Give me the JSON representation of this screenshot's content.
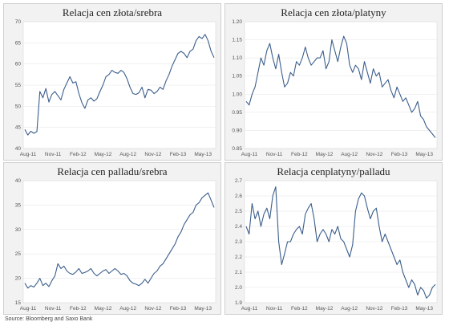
{
  "source": "Source: Bloomberg and Saxo Bank",
  "x_ticks": [
    "Aug-11",
    "Nov-11",
    "Feb-12",
    "May-12",
    "Aug-12",
    "Nov-12",
    "Feb-13",
    "May-13"
  ],
  "line_color": "#3b5e8c",
  "chart_data": [
    {
      "type": "line",
      "title": "Relacja cen złota/srebra",
      "ylim": [
        40,
        70
      ],
      "yticks": [
        40,
        45,
        50,
        55,
        60,
        65,
        70
      ],
      "x_start": "2011-08",
      "x_end": "2013-07",
      "series": [
        {
          "values": [
            44.5,
            43.2,
            44.1,
            43.6,
            44.0,
            53.5,
            52.0,
            54.2,
            51.0,
            52.8,
            53.5,
            52.5,
            51.5,
            54.0,
            55.5,
            57.0,
            55.5,
            55.8,
            53.0,
            50.8,
            49.5,
            51.5,
            52.0,
            51.2,
            51.8,
            53.5,
            55.0,
            57.0,
            57.5,
            58.5,
            58.0,
            57.8,
            58.5,
            58.0,
            56.5,
            54.5,
            53.0,
            52.8,
            53.2,
            54.5,
            52.0,
            54.0,
            53.8,
            53.0,
            53.5,
            54.5,
            54.0,
            56.0,
            57.5,
            59.5,
            61.0,
            62.5,
            63.0,
            62.5,
            61.5,
            63.0,
            63.5,
            65.5,
            66.5,
            66.0,
            67.0,
            65.5,
            63.0,
            61.5
          ]
        }
      ]
    },
    {
      "type": "line",
      "title": "Relacja cen złota/platyny",
      "ylim": [
        0.85,
        1.2
      ],
      "yticks": [
        "0.85",
        "0.90",
        "0.95",
        "1.00",
        "1.05",
        "1.10",
        "1.15",
        "1.20"
      ],
      "x_start": "2011-08",
      "x_end": "2013-07",
      "series": [
        {
          "values": [
            0.98,
            0.97,
            1.0,
            1.02,
            1.06,
            1.1,
            1.08,
            1.12,
            1.14,
            1.1,
            1.07,
            1.11,
            1.06,
            1.02,
            1.03,
            1.06,
            1.05,
            1.09,
            1.08,
            1.1,
            1.13,
            1.1,
            1.08,
            1.09,
            1.1,
            1.1,
            1.12,
            1.07,
            1.09,
            1.15,
            1.12,
            1.09,
            1.13,
            1.16,
            1.14,
            1.08,
            1.06,
            1.08,
            1.07,
            1.04,
            1.09,
            1.06,
            1.03,
            1.07,
            1.05,
            1.06,
            1.02,
            1.03,
            1.04,
            1.01,
            0.99,
            1.02,
            1.0,
            0.98,
            0.99,
            0.97,
            0.95,
            0.96,
            0.98,
            0.94,
            0.93,
            0.91,
            0.9,
            0.89,
            0.88
          ]
        }
      ]
    },
    {
      "type": "line",
      "title": "Relacja cen palladu/srebra",
      "ylim": [
        15,
        40
      ],
      "yticks": [
        15,
        20,
        25,
        30,
        35,
        40
      ],
      "x_start": "2011-08",
      "x_end": "2013-07",
      "series": [
        {
          "values": [
            19.0,
            18.0,
            18.5,
            18.2,
            19.0,
            20.0,
            18.5,
            19.0,
            18.3,
            19.5,
            20.5,
            23.0,
            22.0,
            22.5,
            21.5,
            21.0,
            20.8,
            21.3,
            22.0,
            21.0,
            21.2,
            21.5,
            22.0,
            21.0,
            20.5,
            21.0,
            21.5,
            21.8,
            21.0,
            21.5,
            22.0,
            21.5,
            20.8,
            21.0,
            20.5,
            19.5,
            19.0,
            18.8,
            18.5,
            19.0,
            19.8,
            19.0,
            20.0,
            21.0,
            21.5,
            22.5,
            23.0,
            24.0,
            25.0,
            26.0,
            27.0,
            28.5,
            29.5,
            31.0,
            32.0,
            33.0,
            33.5,
            35.0,
            35.5,
            36.5,
            37.0,
            37.5,
            36.0,
            34.5
          ]
        }
      ]
    },
    {
      "type": "line",
      "title": "Relacja cenplatyny/palladu",
      "ylim": [
        1.9,
        2.7
      ],
      "yticks": [
        "1.9",
        "2.0",
        "2.1",
        "2.2",
        "2.3",
        "2.4",
        "2.5",
        "2.6",
        "2.7"
      ],
      "x_start": "2011-08",
      "x_end": "2013-07",
      "series": [
        {
          "values": [
            2.4,
            2.35,
            2.55,
            2.45,
            2.5,
            2.4,
            2.48,
            2.52,
            2.45,
            2.6,
            2.66,
            2.3,
            2.15,
            2.22,
            2.3,
            2.3,
            2.35,
            2.38,
            2.4,
            2.35,
            2.48,
            2.52,
            2.55,
            2.45,
            2.3,
            2.35,
            2.38,
            2.35,
            2.3,
            2.38,
            2.35,
            2.4,
            2.32,
            2.3,
            2.25,
            2.2,
            2.28,
            2.5,
            2.58,
            2.62,
            2.6,
            2.52,
            2.45,
            2.5,
            2.52,
            2.4,
            2.3,
            2.35,
            2.3,
            2.25,
            2.2,
            2.15,
            2.18,
            2.1,
            2.05,
            2.0,
            2.05,
            2.02,
            1.95,
            2.0,
            1.98,
            1.93,
            1.95,
            2.0,
            2.02
          ]
        }
      ]
    }
  ]
}
